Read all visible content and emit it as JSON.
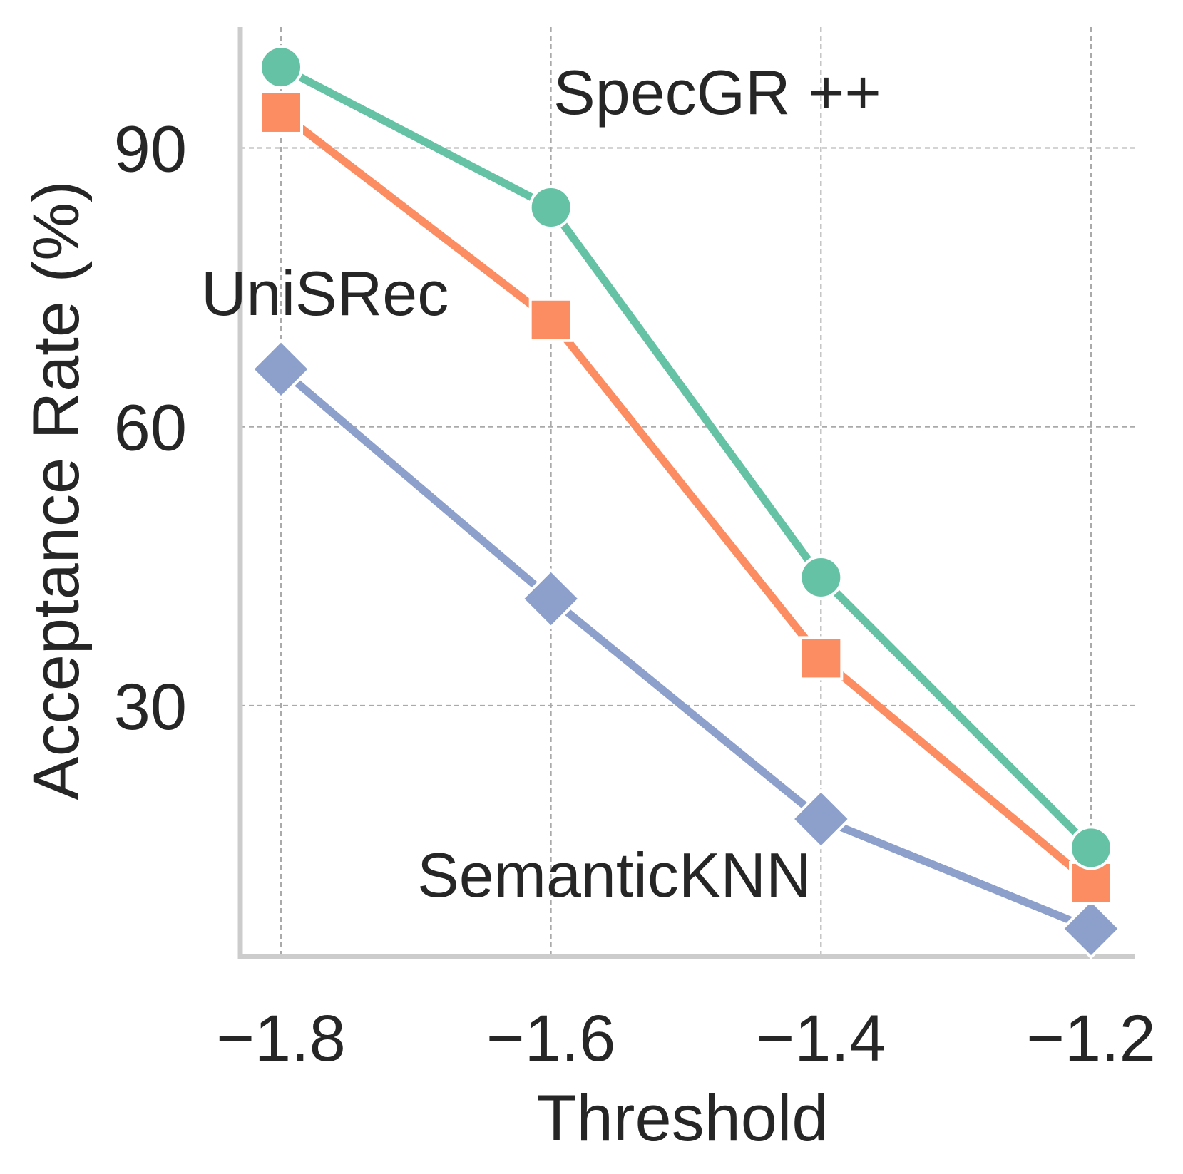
{
  "chart_data": {
    "type": "line",
    "title": "",
    "xlabel": "Threshold",
    "ylabel": "Acceptance Rate (%)",
    "x": [
      -1.8,
      -1.6,
      -1.4,
      -1.2
    ],
    "xlim": [
      -1.8,
      -1.2
    ],
    "ylim": [
      3,
      103
    ],
    "xticks": [
      -1.8,
      -1.6,
      -1.4,
      -1.2
    ],
    "xtick_labels": [
      "−1.8",
      "−1.6",
      "−1.4",
      "−1.2"
    ],
    "yticks": [
      30,
      60,
      90
    ],
    "ytick_labels": [
      "30",
      "60",
      "90"
    ],
    "grid": true,
    "series": [
      {
        "name": "SpecGR ++",
        "marker": "circle",
        "color": "#66c2a5",
        "values": [
          98.7,
          83.6,
          43.8,
          14.7
        ]
      },
      {
        "name": "UniSRec",
        "marker": "square",
        "color": "#fc8d62",
        "values": [
          93.8,
          71.5,
          35.1,
          10.9
        ]
      },
      {
        "name": "SemanticKNN",
        "marker": "diamond",
        "color": "#8da0cb",
        "values": [
          66.2,
          41.5,
          17.8,
          6.0
        ]
      }
    ]
  }
}
